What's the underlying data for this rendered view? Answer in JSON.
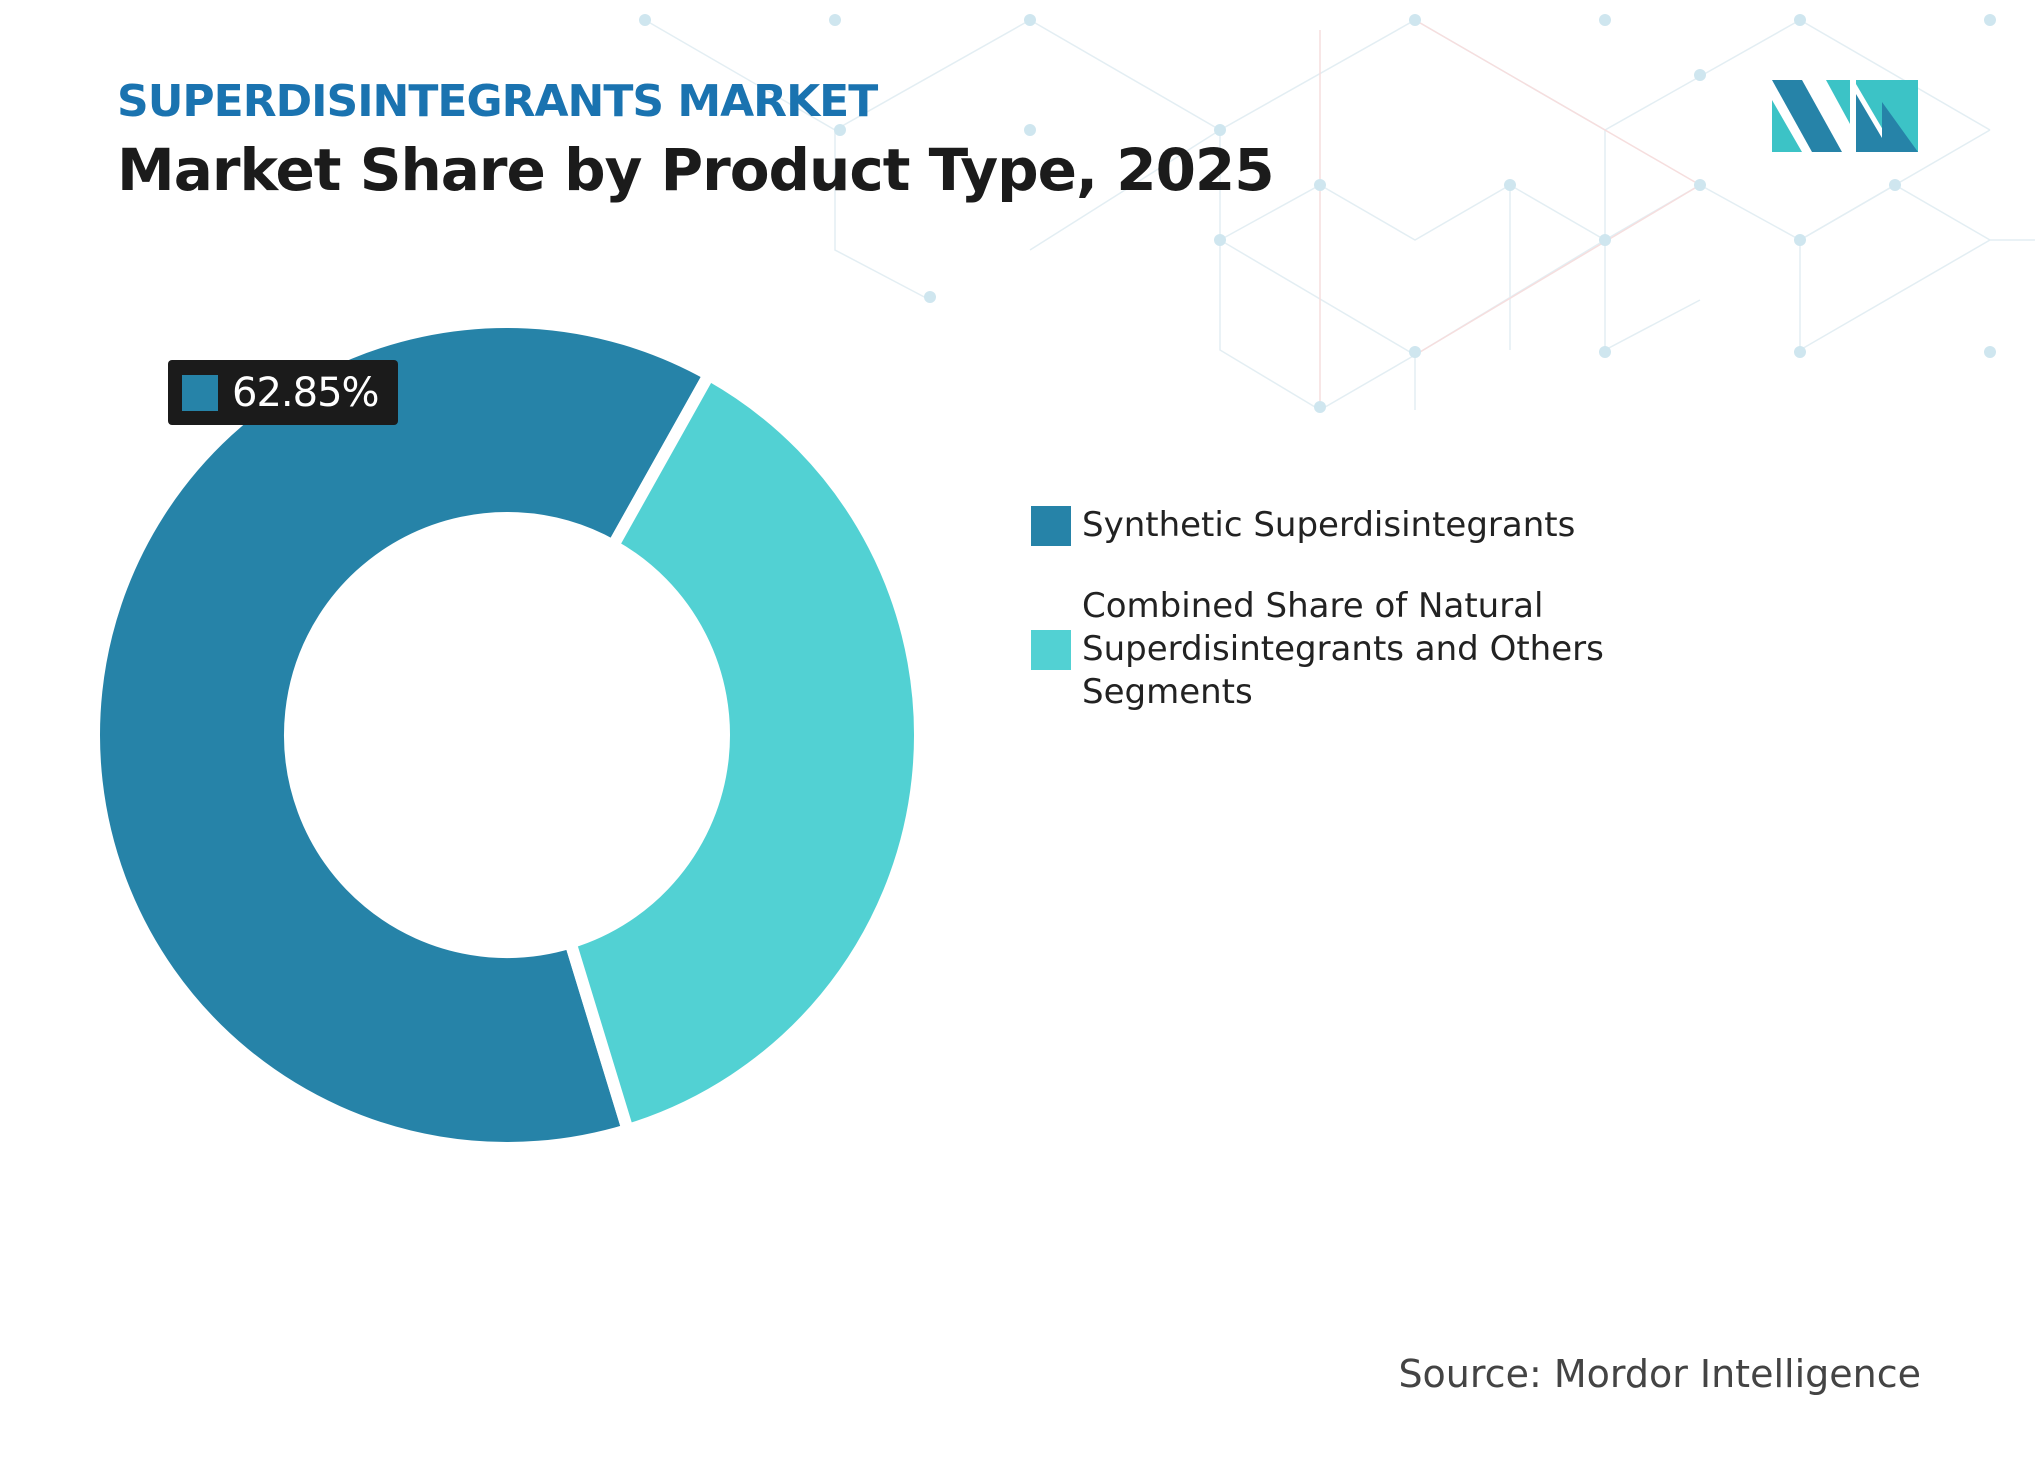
{
  "header": {
    "subtitle": "SUPERDISINTEGRANTS MARKET",
    "title": "Market Share by Product Type, 2025"
  },
  "chart_data": {
    "type": "pie",
    "variant": "donut",
    "categories": [
      "Synthetic Superdisintegrants",
      "Combined Share of Natural Superdisintegrants and Others Segments"
    ],
    "values": [
      62.85,
      37.15
    ],
    "unit": "%",
    "colors": [
      "#2683a8",
      "#52d1d3"
    ],
    "data_labels": [
      {
        "category": "Synthetic Superdisintegrants",
        "text": "62.85%"
      }
    ],
    "legend_position": "right"
  },
  "legend": [
    {
      "label": "Synthetic Superdisintegrants",
      "color": "#2683a8"
    },
    {
      "label": "Combined Share of Natural Superdisintegrants and Others Segments",
      "color": "#52d1d3"
    }
  ],
  "source": "Source: Mordor Intelligence",
  "logo": {
    "text": "Mordor Intelligence",
    "icon": "mordor-logo-icon"
  }
}
